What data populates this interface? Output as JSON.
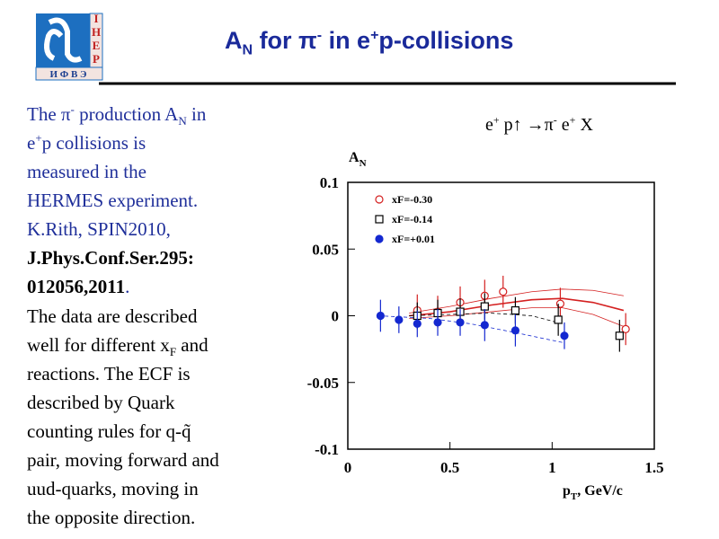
{
  "logo": {
    "side": [
      "I",
      "Н",
      "Е",
      "Р"
    ],
    "bottom": "И Ф В Э"
  },
  "title": [
    "A",
    "N",
    " for π",
    "-",
    " in e",
    "+",
    "p-collisions"
  ],
  "text": {
    "lines": [
      [
        "The π",
        "-",
        " production A",
        "N",
        " in"
      ],
      [
        "e",
        "+",
        "p collisions is"
      ],
      [
        "measured in the"
      ],
      [
        "HERMES experiment."
      ],
      [
        "K.Rith, SPIN2010,"
      ],
      [
        "J.Phys.Conf.Ser.295:"
      ],
      [
        "012056,2011",
        "."
      ],
      [
        "The data are described"
      ],
      [
        "well for different x",
        "F",
        " and"
      ],
      [
        "reactions. The ECF is"
      ],
      [
        "described by Quark"
      ],
      [
        "counting rules for q-q̃"
      ],
      [
        "pair, moving forward and"
      ],
      [
        "uud-quarks, moving in"
      ],
      [
        "the opposite direction."
      ]
    ]
  },
  "chart_data": {
    "type": "scatter",
    "reaction": [
      "e",
      "+",
      " p↑ →π",
      "-",
      " e",
      "+",
      " X"
    ],
    "ylabel": [
      "A",
      "N"
    ],
    "xlabel": [
      "p",
      "T",
      ", GeV/c"
    ],
    "xlim": [
      0,
      1.5
    ],
    "xticks": [
      0,
      0.5,
      1,
      1.5
    ],
    "ylim": [
      -0.1,
      0.1
    ],
    "yticks": [
      -0.1,
      -0.05,
      0,
      0.05,
      0.1
    ],
    "series": [
      {
        "name": "xF=-0.30",
        "color": "#d42020",
        "marker": "open-circle",
        "x": [
          0.34,
          0.44,
          0.55,
          0.67,
          0.76,
          1.04,
          1.36
        ],
        "values": [
          0.004,
          0.003,
          0.01,
          0.015,
          0.018,
          0.009,
          -0.01
        ],
        "errors": [
          0.012,
          0.012,
          0.012,
          0.012,
          0.012,
          0.012,
          0.012
        ]
      },
      {
        "name": "xF=-0.14",
        "color": "#000000",
        "marker": "open-square",
        "x": [
          0.34,
          0.44,
          0.55,
          0.67,
          0.82,
          1.03,
          1.33
        ],
        "values": [
          0,
          0.002,
          0.003,
          0.007,
          0.004,
          -0.003,
          -0.015
        ],
        "errors": [
          0.01,
          0.01,
          0.01,
          0.01,
          0.01,
          0.012,
          0.012
        ]
      },
      {
        "name": "xF=+0.01",
        "color": "#1428d0",
        "marker": "filled-circle",
        "x": [
          0.16,
          0.25,
          0.34,
          0.44,
          0.55,
          0.67,
          0.82,
          1.06
        ],
        "values": [
          0,
          -0.003,
          -0.006,
          -0.005,
          -0.005,
          -0.007,
          -0.011,
          -0.015
        ],
        "errors": [
          0.012,
          0.01,
          0.01,
          0.01,
          0.01,
          0.012,
          0.012,
          0.01
        ]
      }
    ],
    "fits": [
      {
        "color": "#d42020",
        "dash": false,
        "x": [
          0.3,
          0.5,
          0.7,
          0.9,
          1.05,
          1.2,
          1.35
        ],
        "y": [
          0,
          0.003,
          0.008,
          0.012,
          0.013,
          0.01,
          0.004
        ]
      },
      {
        "color": "#d42020",
        "dash": false,
        "x": [
          0.3,
          0.5,
          0.7,
          0.9,
          1.05,
          1.2,
          1.35
        ],
        "y": [
          0.002,
          0.007,
          0.013,
          0.018,
          0.02,
          0.019,
          0.015
        ]
      },
      {
        "color": "#d42020",
        "dash": false,
        "x": [
          0.3,
          0.5,
          0.7,
          0.9,
          1.05,
          1.2,
          1.35
        ],
        "y": [
          -0.002,
          0,
          0.003,
          0.006,
          0.006,
          0.001,
          -0.008
        ]
      },
      {
        "color": "#000000",
        "dash": true,
        "x": [
          0.3,
          0.5,
          0.7,
          0.9,
          1.05
        ],
        "y": [
          0,
          0.001,
          0.002,
          0,
          -0.006
        ]
      },
      {
        "color": "#1428d0",
        "dash": true,
        "x": [
          0.15,
          0.4,
          0.6,
          0.8,
          1.05
        ],
        "y": [
          0,
          -0.002,
          -0.006,
          -0.012,
          -0.02
        ]
      }
    ]
  }
}
